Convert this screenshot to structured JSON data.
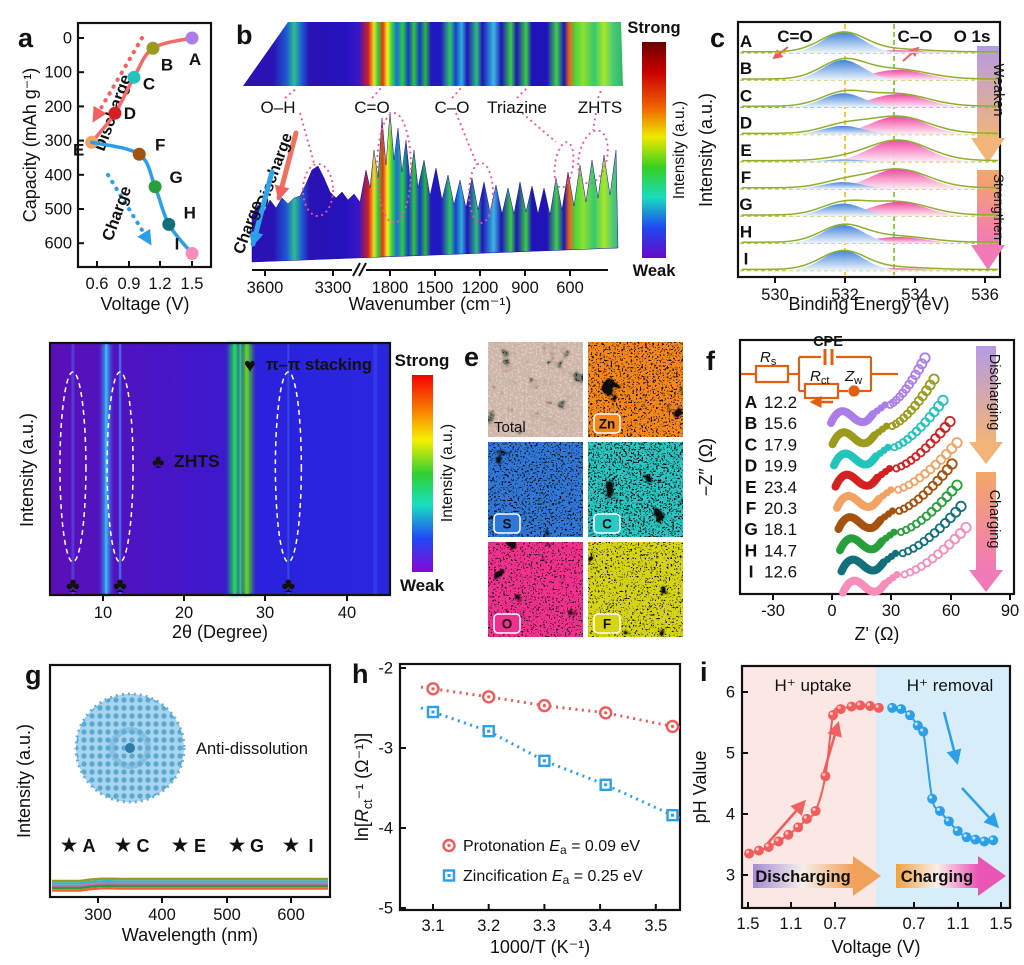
{
  "colors": {
    "A": "#ab7de8",
    "B": "#9a9b1c",
    "C": "#22c4bc",
    "D": "#d42020",
    "E": "#f2a263",
    "F": "#a4520e",
    "G": "#27a03c",
    "H": "#11707a",
    "I": "#f88cba"
  },
  "panels": {
    "a": {
      "letter": "a",
      "xlabel": "Voltage (V)",
      "ylabel": "Capacity (mAh g⁻¹)",
      "discharge": "Discharge",
      "charge": "Charge",
      "xticks": [
        "0.6",
        "0.9",
        "1.2",
        "1.5"
      ],
      "yticks": [
        "0",
        "100",
        "200",
        "300",
        "400",
        "500",
        "600"
      ]
    },
    "b": {
      "letter": "b",
      "xlabel": "Wavenumber (cm⁻¹)",
      "xticks": [
        "3600",
        "3300",
        "1800",
        "1500",
        "1200",
        "900",
        "600"
      ],
      "bands": [
        "O–H",
        "C=O",
        "C–O",
        "Triazine",
        "ZHTS"
      ],
      "discharge": "Discharge",
      "charge": "Charge",
      "colorbar": {
        "top": "Strong",
        "bottom": "Weak",
        "label": "Intensity (a.u.)"
      }
    },
    "c": {
      "letter": "c",
      "xlabel": "Binding Energy (eV)",
      "ylabel": "Intensity (a.u.)",
      "xticks": [
        "530",
        "532",
        "534",
        "536"
      ],
      "peak1": "C=O",
      "peak2": "C–O",
      "region": "O 1s",
      "arrow1": "Weaken",
      "arrow2": "Strengthen"
    },
    "d": {
      "letter": "d",
      "xlabel": "2θ (Degree)",
      "ylabel": "Intensity (a.u.)",
      "xticks": [
        "10",
        "20",
        "30",
        "40"
      ],
      "annotation": "π–π stacking",
      "material": "ZHTS",
      "colorbar": {
        "top": "Strong",
        "bottom": "Weak",
        "label": "Intensity (a.u.)"
      }
    },
    "e": {
      "letter": "e",
      "tiles": [
        {
          "label": "Total",
          "badge": false,
          "color": "#dfb2a6"
        },
        {
          "label": "Zn",
          "badge": true,
          "color": "#f5871a"
        },
        {
          "label": "S",
          "badge": true,
          "color": "#3078d8"
        },
        {
          "label": "C",
          "badge": true,
          "color": "#2cc8c4"
        },
        {
          "label": "O",
          "badge": true,
          "color": "#f0308e"
        },
        {
          "label": "F",
          "badge": true,
          "color": "#d6d414"
        }
      ]
    },
    "f": {
      "letter": "f",
      "xlabel": "Z' (Ω)",
      "ylabel": "−Z″ (Ω)",
      "xticks": [
        "-30",
        "0",
        "30",
        "60",
        "90"
      ],
      "circuit": {
        "cpe": "CPE",
        "rs": "R",
        "rs_sub": "s",
        "rct": "R",
        "rct_sub": "ct",
        "zw": "Z",
        "zw_sub": "w"
      },
      "arrow1": "Discharging",
      "arrow2": "Charging"
    },
    "g": {
      "letter": "g",
      "xlabel": "Wavelength (nm)",
      "ylabel": "Intensity (a.u.)",
      "xticks": [
        "300",
        "400",
        "500",
        "600"
      ],
      "inset": "Anti-dissolution",
      "stars": [
        {
          "id": "A",
          "color": "#ab7de8"
        },
        {
          "id": "C",
          "color": "#22c4bc"
        },
        {
          "id": "E",
          "color": "#f2a263"
        },
        {
          "id": "G",
          "color": "#27a03c"
        },
        {
          "id": "I",
          "color": "#f88cba"
        }
      ]
    },
    "h": {
      "letter": "h",
      "xlabel": "1000/T (K⁻¹)",
      "ylabel_pre": "ln[",
      "ylabel_R": "R",
      "ylabel_sub": "ct",
      "ylabel_post": "⁻¹ (Ω⁻¹)]",
      "xticks": [
        "3.1",
        "3.2",
        "3.3",
        "3.4",
        "3.5"
      ],
      "yticks": [
        "-2",
        "-3",
        "-4",
        "-5"
      ],
      "legend": [
        {
          "name": "Protonation",
          "sym": "E",
          "sub": "a",
          "rest": " = 0.09 eV",
          "color": "#f25a5a",
          "marker": "circle"
        },
        {
          "name": "Zincification",
          "sym": "E",
          "sub": "a",
          "rest": " = 0.25 eV",
          "color": "#2b9fe8",
          "marker": "square"
        }
      ]
    },
    "i": {
      "letter": "i",
      "xlabel": "Voltage (V)",
      "ylabel": "pH Value",
      "xticks_left": [
        "1.5",
        "1.1",
        "0.7"
      ],
      "xticks_right": [
        "0.7",
        "1.1",
        "1.5"
      ],
      "yticks": [
        "3",
        "4",
        "5",
        "6"
      ],
      "label_left": "H⁺ uptake",
      "label_right": "H⁺ removal",
      "arrow_left": "Discharging",
      "arrow_right": "Charging"
    }
  },
  "chart_data": [
    {
      "panel": "a",
      "type": "scatter",
      "xlabel": "Voltage (V)",
      "ylabel": "Capacity (mAh g⁻¹)",
      "xlim": [
        0.45,
        1.62
      ],
      "ylim": [
        0,
        660
      ],
      "y_inverted": true,
      "series": [
        {
          "name": "Discharge",
          "color": "#f26a6a",
          "points": [
            {
              "id": "A",
              "x": 1.5,
              "y": 0,
              "dx": 3,
              "dy": 27
            },
            {
              "id": "B",
              "x": 1.13,
              "y": 30,
              "dx": 14,
              "dy": 22
            },
            {
              "id": "C",
              "x": 0.95,
              "y": 115,
              "dx": 15,
              "dy": 12
            },
            {
              "id": "D",
              "x": 0.77,
              "y": 220,
              "dx": 15,
              "dy": 6
            },
            {
              "id": "E",
              "x": 0.55,
              "y": 305,
              "dx": -13,
              "dy": 13
            }
          ]
        },
        {
          "name": "Charge",
          "color": "#2b9fe8",
          "points": [
            {
              "id": "E",
              "x": 0.55,
              "y": 305
            },
            {
              "id": "F",
              "x": 1.0,
              "y": 340,
              "dx": 21,
              "dy": -4
            },
            {
              "id": "G",
              "x": 1.15,
              "y": 435,
              "dx": 21,
              "dy": -4
            },
            {
              "id": "H",
              "x": 1.28,
              "y": 545,
              "dx": 21,
              "dy": -6
            },
            {
              "id": "I",
              "x": 1.5,
              "y": 630,
              "dx": -15,
              "dy": -4
            }
          ]
        }
      ]
    },
    {
      "panel": "b",
      "type": "heatmap",
      "x_axis_cm": [
        3600,
        3300,
        1800,
        1500,
        1200,
        900,
        600
      ],
      "axis_break_cm": [
        3300,
        1800
      ],
      "bands_cm": [
        {
          "label": "O–H",
          "cm": 3300
        },
        {
          "label": "C=O",
          "cm": 1650
        },
        {
          "label": "C–O",
          "cm": 1200
        },
        {
          "label": "Triazine",
          "cm": 950
        },
        {
          "label": "ZHTS",
          "cm": 630
        }
      ],
      "intensity_scale": [
        "Weak",
        "Strong"
      ]
    },
    {
      "panel": "c",
      "type": "area",
      "region": "O 1s",
      "peak_centers_eV": {
        "C=O": 531.95,
        "C-O": 533.52
      },
      "rows": [
        {
          "id": "A",
          "c2o": 0.92,
          "c1o": 0.12
        },
        {
          "id": "B",
          "c2o": 0.88,
          "c1o": 0.45
        },
        {
          "id": "C",
          "c2o": 0.62,
          "c1o": 0.58
        },
        {
          "id": "D",
          "c2o": 0.38,
          "c1o": 0.8
        },
        {
          "id": "E",
          "c2o": 0.1,
          "c1o": 0.97
        },
        {
          "id": "F",
          "c2o": 0.3,
          "c1o": 0.88
        },
        {
          "id": "G",
          "c2o": 0.55,
          "c1o": 0.62
        },
        {
          "id": "H",
          "c2o": 0.8,
          "c1o": 0.28
        },
        {
          "id": "I",
          "c2o": 0.88,
          "c1o": 0.1
        }
      ]
    },
    {
      "panel": "d",
      "type": "heatmap",
      "xlim": [
        3.5,
        45.3
      ],
      "peaks": [
        {
          "x": 6.3,
          "ring": true
        },
        {
          "x": 10.4
        },
        {
          "x": 12.1,
          "ring": true
        },
        {
          "x": 26.2,
          "pi": true
        },
        {
          "x": 26.9
        },
        {
          "x": 27.7,
          "pi": true
        },
        {
          "x": 32.8,
          "ring": true
        },
        {
          "x": 43.5
        }
      ]
    },
    {
      "panel": "f",
      "type": "scatter",
      "quantity": "Rct (Ω)",
      "rct": [
        {
          "id": "A",
          "value": 12.2
        },
        {
          "id": "B",
          "value": 15.6
        },
        {
          "id": "C",
          "value": 17.9
        },
        {
          "id": "D",
          "value": 19.9
        },
        {
          "id": "E",
          "value": 23.4
        },
        {
          "id": "F",
          "value": 20.3
        },
        {
          "id": "G",
          "value": 18.1
        },
        {
          "id": "H",
          "value": 14.7
        },
        {
          "id": "I",
          "value": 12.6
        }
      ]
    },
    {
      "panel": "g",
      "type": "line",
      "x_range_nm": [
        210,
        700
      ],
      "samples": [
        "A",
        "C",
        "E",
        "G",
        "I"
      ],
      "note": "flat near-zero absorbance for all samples"
    },
    {
      "panel": "h",
      "type": "scatter",
      "x": [
        3.1,
        3.2,
        3.3,
        3.41,
        3.53
      ],
      "xlim": [
        3.05,
        3.58
      ],
      "ylim": [
        -5,
        -2
      ],
      "series": [
        {
          "name": "Protonation",
          "Ea_eV": 0.09,
          "y": [
            -2.26,
            -2.36,
            -2.47,
            -2.56,
            -2.73
          ]
        },
        {
          "name": "Zincification",
          "Ea_eV": 0.25,
          "y": [
            -2.55,
            -2.79,
            -3.16,
            -3.46,
            -3.84
          ]
        }
      ]
    },
    {
      "panel": "i",
      "type": "scatter",
      "ylim": [
        2.5,
        6.5
      ],
      "discharge": [
        [
          1.49,
          3.35
        ],
        [
          1.4,
          3.4
        ],
        [
          1.31,
          3.46
        ],
        [
          1.22,
          3.55
        ],
        [
          1.13,
          3.66
        ],
        [
          1.04,
          3.78
        ],
        [
          0.96,
          3.92
        ],
        [
          0.88,
          4.05
        ],
        [
          0.79,
          4.62
        ],
        [
          0.72,
          5.62
        ],
        [
          0.65,
          5.72
        ],
        [
          0.55,
          5.76
        ],
        [
          0.47,
          5.78
        ],
        [
          0.38,
          5.77
        ],
        [
          0.3,
          5.74
        ]
      ],
      "charge": [
        [
          0.52,
          5.74
        ],
        [
          0.6,
          5.72
        ],
        [
          0.68,
          5.62
        ],
        [
          0.75,
          5.45
        ],
        [
          0.8,
          5.35
        ],
        [
          0.88,
          4.25
        ],
        [
          0.95,
          4.05
        ],
        [
          1.03,
          3.88
        ],
        [
          1.11,
          3.72
        ],
        [
          1.19,
          3.62
        ],
        [
          1.27,
          3.58
        ],
        [
          1.35,
          3.55
        ],
        [
          1.43,
          3.57
        ]
      ]
    }
  ]
}
